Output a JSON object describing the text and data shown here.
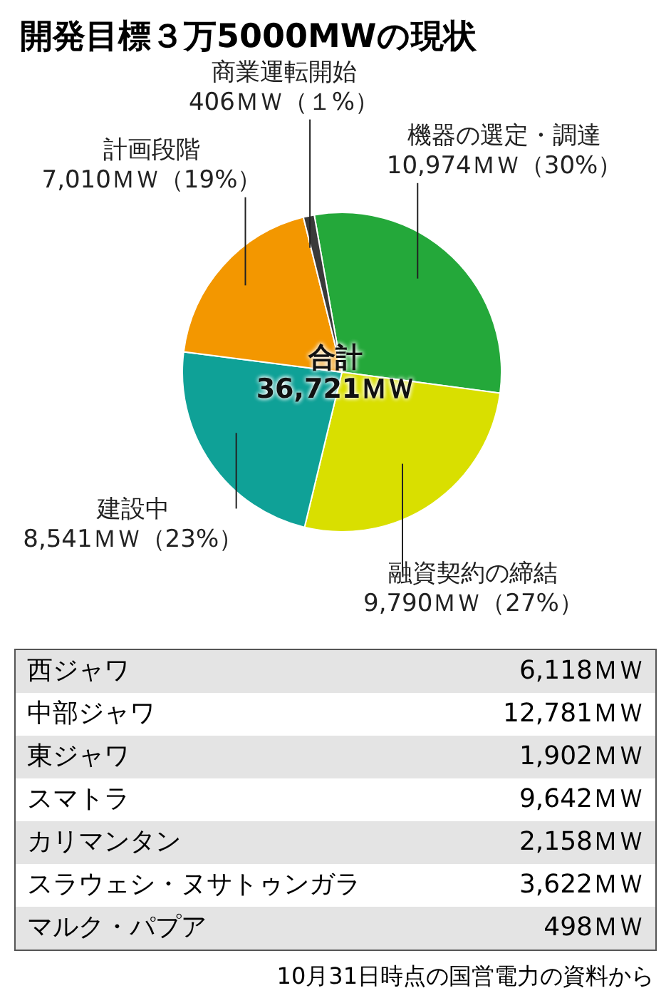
{
  "chart_data": [
    {
      "type": "pie",
      "title": "開発目標３万5000MWの現状",
      "categories": [
        "機器の選定・調達",
        "融資契約の締結",
        "建設中",
        "計画段階",
        "商業運転開始"
      ],
      "values": [
        10974,
        9790,
        8541,
        7010,
        406
      ],
      "colors": [
        "#24a83a",
        "#d9df00",
        "#0fa197",
        "#f39700",
        "#3a3a3a"
      ],
      "value_labels": [
        "10,974ＭＷ（30%）",
        "9,790ＭＷ（27%）",
        "8,541ＭＷ（23%）",
        "7,010ＭＷ（19%）",
        "406ＭＷ（１%）"
      ],
      "annotations": [
        "合計",
        "36,721ＭＷ"
      ]
    },
    {
      "type": "other",
      "categories": [
        "西ジャワ",
        "中部ジャワ",
        "東ジャワ",
        "スマトラ",
        "カリマンタン",
        "スラウェシ・ヌサトゥンガラ",
        "マルク・パプア"
      ],
      "value_labels": [
        "6,118ＭＷ",
        "12,781ＭＷ",
        "1,902ＭＷ",
        "9,642ＭＷ",
        "2,158ＭＷ",
        "3,622ＭＷ",
        "498ＭＷ"
      ],
      "annotations": [
        "10月31日時点の国営電力の資料から"
      ]
    }
  ]
}
